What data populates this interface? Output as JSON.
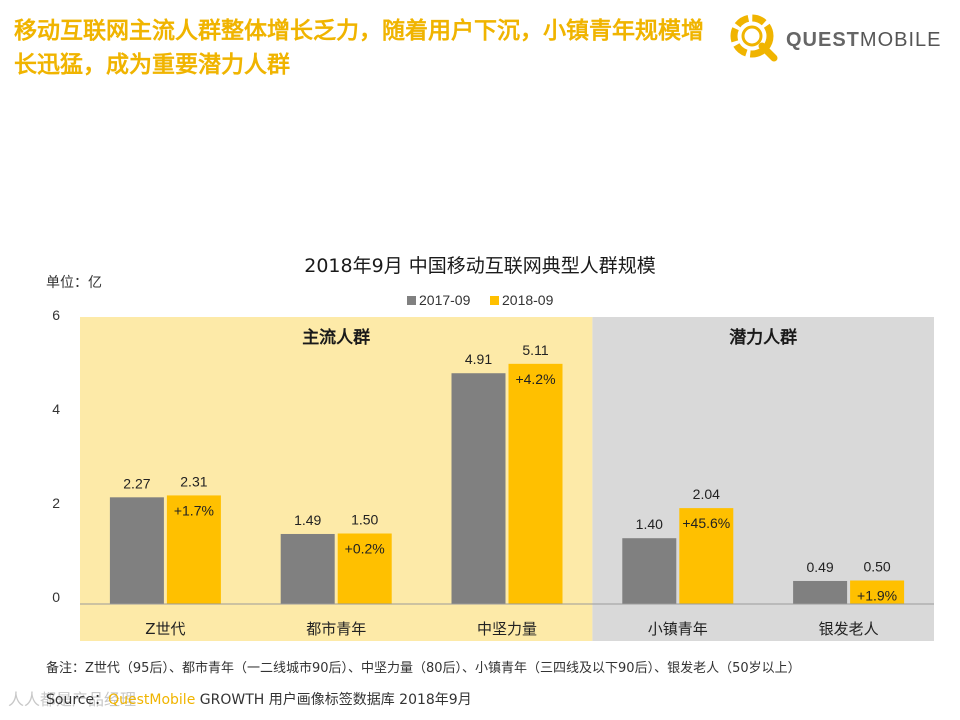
{
  "header": {
    "title": "移动互联网主流人群整体增长乏力，随着用户下沉，小镇青年规模增长迅猛，成为重要潜力人群",
    "brand_quest": "QUEST",
    "brand_mobile": "MOBILE"
  },
  "chart_data": {
    "type": "bar",
    "title": "2018年9月 中国移动互联网典型人群规模",
    "unit_label": "单位：亿",
    "categories": [
      "Z世代",
      "都市青年",
      "中坚力量",
      "小镇青年",
      "银发老人"
    ],
    "series": [
      {
        "name": "2017-09",
        "values": [
          2.27,
          1.49,
          4.91,
          1.4,
          0.49
        ],
        "color": "#808080"
      },
      {
        "name": "2018-09",
        "values": [
          2.31,
          1.5,
          5.11,
          2.04,
          0.5
        ],
        "color": "#ffc000"
      }
    ],
    "value_labels_2017": [
      "2.27",
      "1.49",
      "4.91",
      "1.40",
      "0.49"
    ],
    "value_labels_2018": [
      "2.31",
      "1.50",
      "5.11",
      "2.04",
      "0.50"
    ],
    "growth_labels": [
      "+1.7%",
      "+0.2%",
      "+4.2%",
      "+45.6%",
      "+1.9%"
    ],
    "groups": [
      {
        "label": "主流人群",
        "categories": [
          "Z世代",
          "都市青年",
          "中坚力量"
        ],
        "color": "#fdeaa8"
      },
      {
        "label": "潜力人群",
        "categories": [
          "小镇青年",
          "银发老人"
        ],
        "color": "#d9d9d9"
      }
    ],
    "ylim": [
      0,
      6
    ],
    "yticks": [
      0,
      2,
      4,
      6
    ],
    "ytick_labels": [
      "0",
      "2",
      "4",
      "6"
    ],
    "legend_position": "top-center"
  },
  "footer": {
    "note": "备注：Z世代（95后）、都市青年（一二线城市90后）、中坚力量（80后）、小镇青年（三四线及以下90后）、银发老人（50岁以上）",
    "source_prefix": "Source：",
    "source_brand": "QuestMobile",
    "source_rest": " GROWTH 用户画像标签数据库 2018年9月",
    "watermark": "人人都是产品经理"
  }
}
